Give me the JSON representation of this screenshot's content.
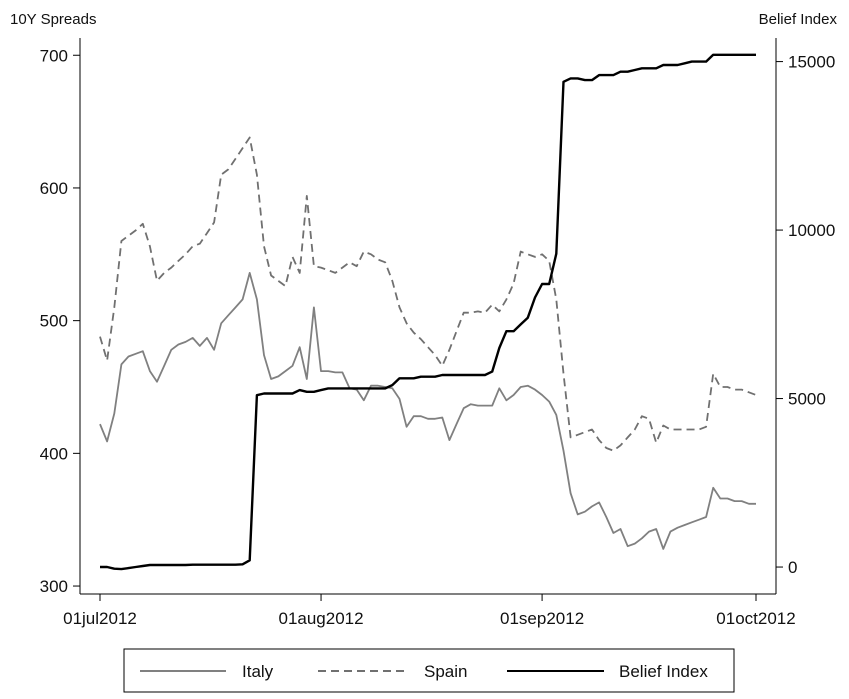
{
  "chart_data": {
    "type": "line",
    "title": "",
    "x": [
      "2012-07-01",
      "2012-07-02",
      "2012-07-03",
      "2012-07-04",
      "2012-07-05",
      "2012-07-06",
      "2012-07-07",
      "2012-07-08",
      "2012-07-09",
      "2012-07-10",
      "2012-07-11",
      "2012-07-12",
      "2012-07-13",
      "2012-07-14",
      "2012-07-15",
      "2012-07-16",
      "2012-07-17",
      "2012-07-18",
      "2012-07-19",
      "2012-07-20",
      "2012-07-21",
      "2012-07-22",
      "2012-07-23",
      "2012-07-24",
      "2012-07-25",
      "2012-07-26",
      "2012-07-27",
      "2012-07-28",
      "2012-07-29",
      "2012-07-30",
      "2012-07-31",
      "2012-08-01",
      "2012-08-02",
      "2012-08-03",
      "2012-08-04",
      "2012-08-05",
      "2012-08-06",
      "2012-08-07",
      "2012-08-08",
      "2012-08-09",
      "2012-08-10",
      "2012-08-11",
      "2012-08-12",
      "2012-08-13",
      "2012-08-14",
      "2012-08-15",
      "2012-08-16",
      "2012-08-17",
      "2012-08-18",
      "2012-08-19",
      "2012-08-20",
      "2012-08-21",
      "2012-08-22",
      "2012-08-23",
      "2012-08-24",
      "2012-08-25",
      "2012-08-26",
      "2012-08-27",
      "2012-08-28",
      "2012-08-29",
      "2012-08-30",
      "2012-08-31",
      "2012-09-01",
      "2012-09-02",
      "2012-09-03",
      "2012-09-04",
      "2012-09-05",
      "2012-09-06",
      "2012-09-07",
      "2012-09-08",
      "2012-09-09",
      "2012-09-10",
      "2012-09-11",
      "2012-09-12",
      "2012-09-13",
      "2012-09-14",
      "2012-09-15",
      "2012-09-16",
      "2012-09-17",
      "2012-09-18",
      "2012-09-19",
      "2012-09-20",
      "2012-09-21",
      "2012-09-22",
      "2012-09-23",
      "2012-09-24",
      "2012-09-25",
      "2012-09-26",
      "2012-09-27",
      "2012-09-28",
      "2012-09-29",
      "2012-09-30",
      "2012-10-01"
    ],
    "series": [
      {
        "name": "Italy",
        "axis": "left",
        "color": "#808080",
        "dash": "solid",
        "values": [
          422,
          409,
          430,
          467,
          473,
          475,
          477,
          462,
          454,
          466,
          478,
          482,
          484,
          487,
          481,
          487,
          478,
          498,
          504,
          510,
          516,
          536,
          516,
          474,
          456,
          458,
          462,
          466,
          480,
          456,
          510,
          462,
          462,
          461,
          461,
          449,
          448,
          440,
          451,
          451,
          450,
          449,
          441,
          420,
          428,
          428,
          426,
          426,
          427,
          410,
          422,
          434,
          437,
          436,
          436,
          436,
          449,
          440,
          444,
          450,
          451,
          448,
          444,
          439,
          429,
          402,
          370,
          354,
          356,
          360,
          363,
          352,
          340,
          343,
          330,
          332,
          336,
          341,
          343,
          328,
          341,
          344,
          346,
          348,
          350,
          352,
          374,
          366,
          366,
          364,
          364,
          362,
          362
        ]
      },
      {
        "name": "Spain",
        "axis": "left",
        "color": "#707070",
        "dash": "dashed",
        "values": [
          488,
          470,
          510,
          560,
          564,
          568,
          573,
          556,
          530,
          536,
          540,
          545,
          550,
          556,
          558,
          566,
          574,
          610,
          614,
          622,
          630,
          638,
          610,
          556,
          534,
          530,
          526,
          548,
          536,
          594,
          541,
          540,
          538,
          536,
          540,
          544,
          541,
          552,
          550,
          546,
          544,
          530,
          510,
          498,
          491,
          486,
          480,
          474,
          466,
          478,
          492,
          506,
          506,
          507,
          506,
          512,
          507,
          516,
          528,
          552,
          550,
          548,
          550,
          545,
          516,
          460,
          412,
          414,
          416,
          418,
          410,
          404,
          402,
          406,
          412,
          418,
          428,
          426,
          408,
          421,
          418,
          418,
          418,
          418,
          418,
          420,
          460,
          450,
          450,
          448,
          448,
          446,
          444
        ]
      },
      {
        "name": "Belief Index",
        "axis": "right",
        "color": "#000000",
        "dash": "solid",
        "values": [
          0,
          0,
          -50,
          -60,
          -30,
          0,
          30,
          60,
          60,
          60,
          60,
          60,
          60,
          70,
          70,
          70,
          70,
          70,
          70,
          70,
          80,
          200,
          5100,
          5150,
          5150,
          5150,
          5150,
          5150,
          5250,
          5200,
          5200,
          5250,
          5300,
          5300,
          5300,
          5300,
          5300,
          5300,
          5300,
          5300,
          5300,
          5400,
          5600,
          5600,
          5600,
          5650,
          5650,
          5650,
          5700,
          5700,
          5700,
          5700,
          5700,
          5700,
          5700,
          5800,
          6500,
          7000,
          7000,
          7200,
          7400,
          8000,
          8400,
          8400,
          9300,
          14400,
          14500,
          14500,
          14450,
          14450,
          14600,
          14600,
          14600,
          14700,
          14700,
          14750,
          14800,
          14800,
          14800,
          14900,
          14900,
          14900,
          14950,
          15000,
          15000,
          15000,
          15200,
          15200,
          15200,
          15200,
          15200,
          15200,
          15200
        ]
      }
    ],
    "left_axis": {
      "label": "10Y Spreads",
      "range": [
        294,
        713
      ],
      "ticks": [
        300,
        400,
        500,
        600,
        700
      ],
      "tick_labels": [
        "300",
        "400",
        "500",
        "600",
        "700"
      ]
    },
    "right_axis": {
      "label": "Belief Index",
      "range": [
        -800,
        15700
      ],
      "ticks": [
        0,
        5000,
        10000,
        15000
      ],
      "tick_labels": [
        "0",
        "5000",
        "10000",
        "15000"
      ]
    },
    "x_axis": {
      "range": [
        "2012-07-01",
        "2012-10-01"
      ],
      "ticks": [
        "2012-07-01",
        "2012-08-01",
        "2012-09-01",
        "2012-10-01"
      ],
      "tick_labels": [
        "01jul2012",
        "01aug2012",
        "01sep2012",
        "01oct2012"
      ]
    },
    "grid": false,
    "legend": {
      "placement": "bottom",
      "items": [
        "Italy",
        "Spain",
        "Belief Index"
      ]
    }
  }
}
